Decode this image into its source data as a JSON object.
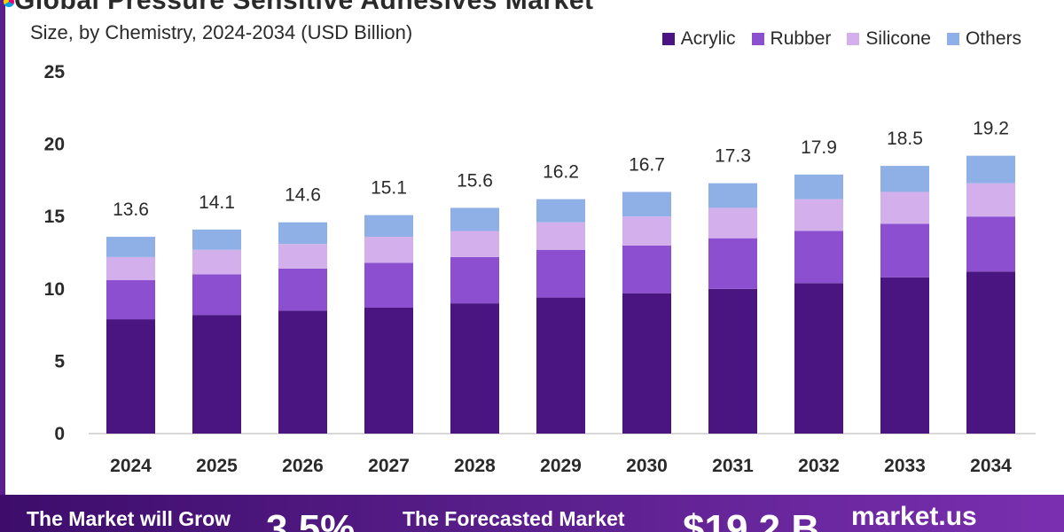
{
  "header": {
    "title": "Global Pressure Sensitive Adhesives Market",
    "subtitle": "Size, by Chemistry, 2024-2034 (USD Billion)"
  },
  "colors": {
    "acrylic": "#4a1580",
    "rubber": "#8b4fd0",
    "silicone": "#d3b0ec",
    "others": "#8fb0e6",
    "banner": "#5a1f8c"
  },
  "chart_data": {
    "type": "bar",
    "stacked": true,
    "subtitle": "Size, by Chemistry, 2024-2034 (USD Billion)",
    "categories": [
      "2024",
      "2025",
      "2026",
      "2027",
      "2028",
      "2029",
      "2030",
      "2031",
      "2032",
      "2033",
      "2034"
    ],
    "series": [
      {
        "name": "Acrylic",
        "color": "#4a1580",
        "values": [
          7.9,
          8.2,
          8.5,
          8.7,
          9.0,
          9.4,
          9.7,
          10.0,
          10.4,
          10.8,
          11.2
        ]
      },
      {
        "name": "Rubber",
        "color": "#8b4fd0",
        "values": [
          2.7,
          2.8,
          2.9,
          3.1,
          3.2,
          3.3,
          3.3,
          3.5,
          3.6,
          3.7,
          3.8
        ]
      },
      {
        "name": "Silicone",
        "color": "#d3b0ec",
        "values": [
          1.6,
          1.7,
          1.7,
          1.8,
          1.8,
          1.9,
          2.0,
          2.1,
          2.2,
          2.2,
          2.3
        ]
      },
      {
        "name": "Others",
        "color": "#8fb0e6",
        "values": [
          1.4,
          1.4,
          1.5,
          1.5,
          1.6,
          1.6,
          1.7,
          1.7,
          1.7,
          1.8,
          1.9
        ]
      }
    ],
    "totals": [
      "13.6",
      "14.1",
      "14.6",
      "15.1",
      "15.6",
      "16.2",
      "16.7",
      "17.3",
      "17.9",
      "18.5",
      "19.2"
    ],
    "yticks": [
      "0",
      "5",
      "10",
      "15",
      "20",
      "25"
    ],
    "ylim": [
      0,
      25
    ],
    "legend_position": "top-right",
    "grid": false
  },
  "banner": {
    "grow_label": "The Market will Grow",
    "cagr_value": "3.5%",
    "forecast_label": "The Forecasted Market",
    "forecast_value": "$19.2 B",
    "brand": "market.us"
  }
}
